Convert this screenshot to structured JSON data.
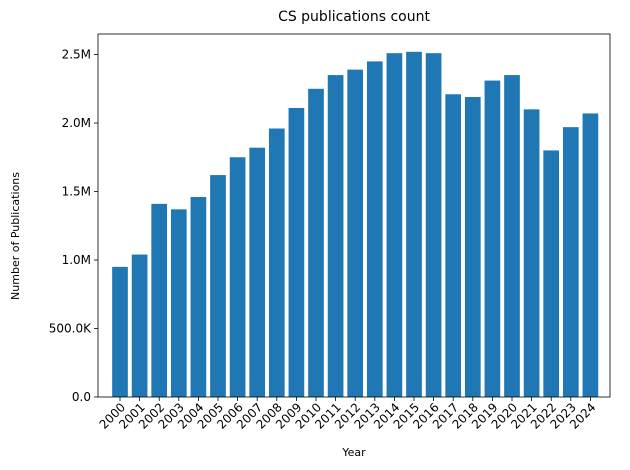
{
  "chart_data": {
    "type": "bar",
    "title": "CS publications count",
    "xlabel": "Year",
    "ylabel": "Number of Publications",
    "categories": [
      "2000",
      "2001",
      "2002",
      "2003",
      "2004",
      "2005",
      "2006",
      "2007",
      "2008",
      "2009",
      "2010",
      "2011",
      "2012",
      "2013",
      "2014",
      "2015",
      "2016",
      "2017",
      "2018",
      "2019",
      "2020",
      "2021",
      "2022",
      "2023",
      "2024"
    ],
    "values": [
      950000,
      1040000,
      1410000,
      1370000,
      1460000,
      1620000,
      1750000,
      1820000,
      1960000,
      2110000,
      2250000,
      2350000,
      2390000,
      2450000,
      2510000,
      2520000,
      2510000,
      2210000,
      2190000,
      2310000,
      2350000,
      2100000,
      1800000,
      1970000,
      2070000
    ],
    "ylim": [
      0,
      2650000
    ],
    "yticks": [
      0,
      500000,
      1000000,
      1500000,
      2000000,
      2500000
    ],
    "ytick_labels": [
      "0.0",
      "500.0K",
      "1.0M",
      "1.5M",
      "2.0M",
      "2.5M"
    ],
    "bar_color": "#1f77b4",
    "grid": false,
    "legend": null
  }
}
